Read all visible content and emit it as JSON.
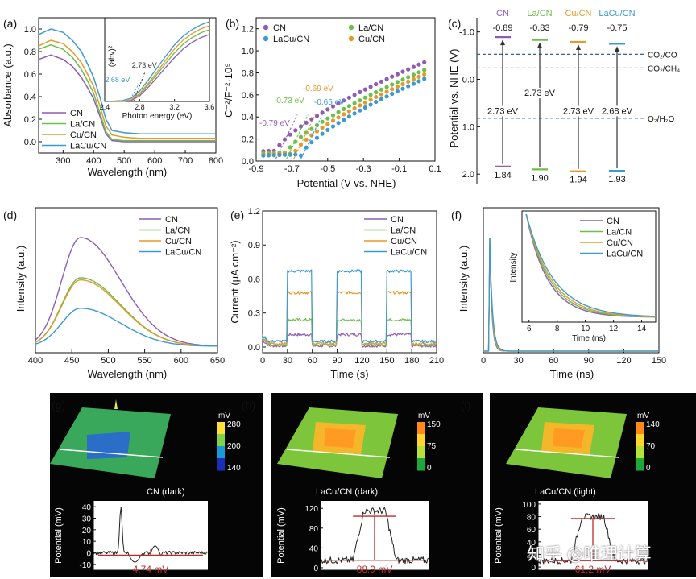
{
  "watermark": "知乎 @唯理计算",
  "colors": {
    "CN": "#8e5cb5",
    "La/CN": "#6cbf4a",
    "Cu/CN": "#e39a2c",
    "LaCu/CN": "#3a9bd0",
    "dash": "#1f4e9c",
    "red": "#c0282a",
    "leader": "#333333"
  },
  "chart_data": [
    {
      "id": "a",
      "panel": "(a)",
      "type": "line",
      "xlabel": "Wavelength (nm)",
      "ylabel": "Absorbance (a.u.)",
      "xlim": [
        220,
        800
      ],
      "ylim": [
        -0.1,
        1.1
      ],
      "xticks": [
        300,
        400,
        500,
        600,
        700,
        800
      ],
      "yticks": [
        0.0,
        0.2,
        0.4,
        0.6,
        0.8,
        1.0
      ],
      "legend": [
        "CN",
        "La/CN",
        "Cu/CN",
        "LaCu/CN"
      ],
      "series": [
        {
          "name": "CN",
          "x": [
            220,
            260,
            300,
            330,
            360,
            380,
            400,
            420,
            440,
            460,
            500,
            550,
            600,
            700,
            800
          ],
          "y": [
            0.73,
            0.77,
            0.73,
            0.67,
            0.57,
            0.48,
            0.38,
            0.23,
            0.07,
            0.01,
            0.0,
            0.0,
            0.0,
            0.0,
            0.0
          ]
        },
        {
          "name": "La/CN",
          "x": [
            220,
            260,
            300,
            330,
            360,
            380,
            400,
            420,
            440,
            460,
            500,
            550,
            600,
            700,
            800
          ],
          "y": [
            0.82,
            0.86,
            0.82,
            0.75,
            0.64,
            0.54,
            0.43,
            0.26,
            0.09,
            0.02,
            0.01,
            0.01,
            0.01,
            0.01,
            0.01
          ]
        },
        {
          "name": "Cu/CN",
          "x": [
            220,
            260,
            300,
            330,
            360,
            380,
            400,
            420,
            440,
            460,
            500,
            550,
            600,
            700,
            800
          ],
          "y": [
            0.85,
            0.9,
            0.87,
            0.8,
            0.7,
            0.6,
            0.49,
            0.32,
            0.14,
            0.06,
            0.04,
            0.03,
            0.03,
            0.03,
            0.03
          ]
        },
        {
          "name": "LaCu/CN",
          "x": [
            220,
            260,
            300,
            330,
            360,
            380,
            400,
            420,
            440,
            460,
            500,
            550,
            600,
            700,
            800
          ],
          "y": [
            0.95,
            1.0,
            0.97,
            0.9,
            0.8,
            0.69,
            0.57,
            0.4,
            0.2,
            0.1,
            0.08,
            0.07,
            0.07,
            0.07,
            0.07
          ]
        }
      ],
      "inset": {
        "xlabel": "Photon energy (eV)",
        "ylabel": "(ahv)²",
        "xlim": [
          2.4,
          3.6
        ],
        "xticks": [
          2.4,
          2.8,
          3.2,
          3.6
        ],
        "annotations": [
          {
            "text": "2.73 eV",
            "color": "#333333",
            "x": 2.73
          },
          {
            "text": "2.68 eV",
            "color": "#3a9bd0",
            "x": 2.68
          }
        ],
        "series": [
          {
            "name": "CN",
            "x": [
              2.4,
              2.6,
              2.7,
              2.8,
              2.9,
              3.0,
              3.1,
              3.2,
              3.3,
              3.4,
              3.5,
              3.6
            ],
            "y": [
              0.0,
              0.0,
              0.01,
              0.07,
              0.18,
              0.3,
              0.43,
              0.55,
              0.66,
              0.74,
              0.8,
              0.84
            ]
          },
          {
            "name": "La/CN",
            "x": [
              2.4,
              2.6,
              2.7,
              2.8,
              2.9,
              3.0,
              3.1,
              3.2,
              3.3,
              3.4,
              3.5,
              3.6
            ],
            "y": [
              0.0,
              0.0,
              0.02,
              0.09,
              0.21,
              0.34,
              0.48,
              0.61,
              0.72,
              0.8,
              0.86,
              0.9
            ]
          },
          {
            "name": "Cu/CN",
            "x": [
              2.4,
              2.6,
              2.7,
              2.8,
              2.9,
              3.0,
              3.1,
              3.2,
              3.3,
              3.4,
              3.5,
              3.6
            ],
            "y": [
              0.0,
              0.0,
              0.02,
              0.1,
              0.23,
              0.37,
              0.52,
              0.66,
              0.77,
              0.85,
              0.91,
              0.95
            ]
          },
          {
            "name": "LaCu/CN",
            "x": [
              2.4,
              2.6,
              2.7,
              2.8,
              2.9,
              3.0,
              3.1,
              3.2,
              3.3,
              3.4,
              3.5,
              3.6
            ],
            "y": [
              0.0,
              0.01,
              0.04,
              0.13,
              0.27,
              0.42,
              0.57,
              0.71,
              0.82,
              0.9,
              0.96,
              1.0
            ]
          }
        ]
      }
    },
    {
      "id": "b",
      "panel": "(b)",
      "type": "scatter",
      "xlabel": "Potential (V vs. NHE)",
      "ylabel": "C⁻²/F⁻²·10⁹",
      "xlim": [
        -0.9,
        0.1
      ],
      "ylim": [
        0.0,
        1.3
      ],
      "xticks": [
        -0.9,
        -0.7,
        -0.5,
        -0.3,
        -0.1,
        0.1
      ],
      "xtick_labels": [
        "-0.9",
        "-0.7",
        "-0.5",
        "-0.3",
        "-0.1",
        "0.1"
      ],
      "yticks": [
        0.0,
        0.2,
        0.4,
        0.6,
        0.8,
        1.0,
        1.2
      ],
      "ytick_labels": [
        "0.0",
        "0.2",
        "0.4",
        "0.6",
        "0.8",
        "1.0",
        "1.2"
      ],
      "legend": [
        "CN",
        "La/CN",
        "LaCu/CN",
        "Cu/CN"
      ],
      "series": [
        {
          "name": "CN",
          "x0": -0.79,
          "y_start": 0.09,
          "y_end": 0.91
        },
        {
          "name": "La/CN",
          "x0": -0.73,
          "y_start": 0.07,
          "y_end": 0.84
        },
        {
          "name": "Cu/CN",
          "x0": -0.69,
          "y_start": 0.06,
          "y_end": 0.8
        },
        {
          "name": "LaCu/CN",
          "x0": -0.65,
          "y_start": 0.05,
          "y_end": 0.76
        }
      ],
      "annotations": [
        {
          "text": "-0.79 eV",
          "series": "CN",
          "x": -0.79
        },
        {
          "text": "-0.73 eV",
          "series": "La/CN",
          "x": -0.73
        },
        {
          "text": "-0.69 eV",
          "series": "Cu/CN",
          "x": -0.69
        },
        {
          "text": "-0.65 eV",
          "series": "LaCu/CN",
          "x": -0.65
        }
      ]
    },
    {
      "id": "c",
      "panel": "(c)",
      "type": "band-diagram",
      "ylabel": "Potential vs. NHE (V)",
      "ylim": [
        -1.3,
        2.2
      ],
      "yticks": [
        -1.0,
        0.0,
        1.0,
        2.0
      ],
      "ytick_labels": [
        "-1.0",
        "0.0",
        "1.0",
        "2.0"
      ],
      "samples": [
        {
          "name": "CN",
          "cb": -0.89,
          "vb": 1.84,
          "gap": "2.73 eV",
          "cb_label": "-0.89",
          "vb_label": "1.84"
        },
        {
          "name": "La/CN",
          "cb": -0.83,
          "vb": 1.9,
          "gap": "2.73 eV",
          "cb_label": "-0.83",
          "vb_label": "1.90"
        },
        {
          "name": "Cu/CN",
          "cb": -0.79,
          "vb": 1.94,
          "gap": "2.73 eV",
          "cb_label": "-0.79",
          "vb_label": "1.94"
        },
        {
          "name": "LaCu/CN",
          "cb": -0.75,
          "vb": 1.93,
          "gap": "2.68 eV",
          "cb_label": "-0.75",
          "vb_label": "1.93"
        }
      ],
      "references": [
        {
          "label": "CO₂/CO",
          "value": -0.53
        },
        {
          "label": "CO₂/CH₄",
          "value": -0.24
        },
        {
          "label": "O₂/H₂O",
          "value": 0.82
        }
      ]
    },
    {
      "id": "d",
      "panel": "(d)",
      "type": "line",
      "xlabel": "Wavelength (nm)",
      "ylabel": "Intensity (a.u.)",
      "xlim": [
        400,
        650
      ],
      "xticks": [
        400,
        450,
        500,
        550,
        600,
        650
      ],
      "legend": [
        "CN",
        "La/CN",
        "Cu/CN",
        "LaCu/CN"
      ],
      "series": [
        {
          "name": "CN",
          "peak_x": 462,
          "peak": 1.0
        },
        {
          "name": "La/CN",
          "peak_x": 462,
          "peak": 0.63
        },
        {
          "name": "Cu/CN",
          "peak_x": 462,
          "peak": 0.61
        },
        {
          "name": "LaCu/CN",
          "peak_x": 462,
          "peak": 0.35
        }
      ]
    },
    {
      "id": "e",
      "panel": "(e)",
      "type": "line",
      "xlabel": "Time (s)",
      "ylabel": "Current  (μA cm⁻²)",
      "xlim": [
        0,
        210
      ],
      "ylim": [
        -0.05,
        1.2
      ],
      "xticks": [
        0,
        30,
        60,
        90,
        120,
        150,
        180,
        210
      ],
      "yticks": [
        0.0,
        0.3,
        0.6,
        0.9,
        1.2
      ],
      "ytick_labels": [
        "0.0",
        "0.3",
        "0.6",
        "0.9",
        "1.2"
      ],
      "light_on": [
        [
          30,
          60
        ],
        [
          90,
          120
        ],
        [
          150,
          180
        ]
      ],
      "legend": [
        "CN",
        "La/CN",
        "Cu/CN",
        "LaCu/CN"
      ],
      "series": [
        {
          "name": "CN",
          "on": 0.11,
          "off": 0.01
        },
        {
          "name": "La/CN",
          "on": 0.24,
          "off": 0.02
        },
        {
          "name": "Cu/CN",
          "on": 0.48,
          "off": 0.03
        },
        {
          "name": "LaCu/CN",
          "on": 0.67,
          "off": 0.05
        }
      ]
    },
    {
      "id": "f",
      "panel": "(f)",
      "type": "line",
      "xlabel": "Time (ns)",
      "ylabel": "Intensity (a.u.)",
      "xlim": [
        0,
        150
      ],
      "xticks": [
        0,
        30,
        60,
        90,
        120,
        150
      ],
      "legend": [
        "CN",
        "La/CN",
        "Cu/CN",
        "LaCu/CN"
      ],
      "series": [
        {
          "name": "CN",
          "tau": 1.8
        },
        {
          "name": "La/CN",
          "tau": 1.95
        },
        {
          "name": "Cu/CN",
          "tau": 2.1
        },
        {
          "name": "LaCu/CN",
          "tau": 2.3
        }
      ],
      "inset": {
        "xlabel": "Time (ns)",
        "ylabel": "Intensity",
        "xlim": [
          5.5,
          15
        ],
        "xticks": [
          6,
          8,
          10,
          12,
          14
        ]
      }
    },
    {
      "id": "g",
      "panel": "(g)",
      "type": "kpfm",
      "label": "CN (dark)",
      "colorbar": {
        "unit": "mV",
        "ticks": [
          "280",
          "200",
          "140"
        ]
      },
      "profile": {
        "ylabel": "Potential (mV)",
        "yticks": [
          "40",
          "30",
          "20",
          "10",
          "0",
          "-10"
        ],
        "ylim": [
          -15,
          45
        ],
        "diff": "4.74 mV"
      }
    },
    {
      "id": "h",
      "panel": "(h)",
      "type": "kpfm",
      "label": "LaCu/CN (dark)",
      "colorbar": {
        "unit": "mV",
        "ticks": [
          "150",
          "75",
          "0"
        ]
      },
      "profile": {
        "ylabel": "Potential (mV)",
        "yticks": [
          "120",
          "80",
          "40",
          "0"
        ],
        "ylim": [
          -5,
          135
        ],
        "diff": "88.9 mV"
      }
    },
    {
      "id": "i",
      "panel": "(i)",
      "type": "kpfm",
      "label": "LaCu/CN (light)",
      "colorbar": {
        "unit": "mV",
        "ticks": [
          "140",
          "70",
          "0"
        ]
      },
      "profile": {
        "ylabel": "Potential (mV)",
        "yticks": [
          "100",
          "80",
          "60",
          "40",
          "20",
          "0"
        ],
        "ylim": [
          -5,
          105
        ],
        "diff": "61.2 mV"
      }
    }
  ]
}
